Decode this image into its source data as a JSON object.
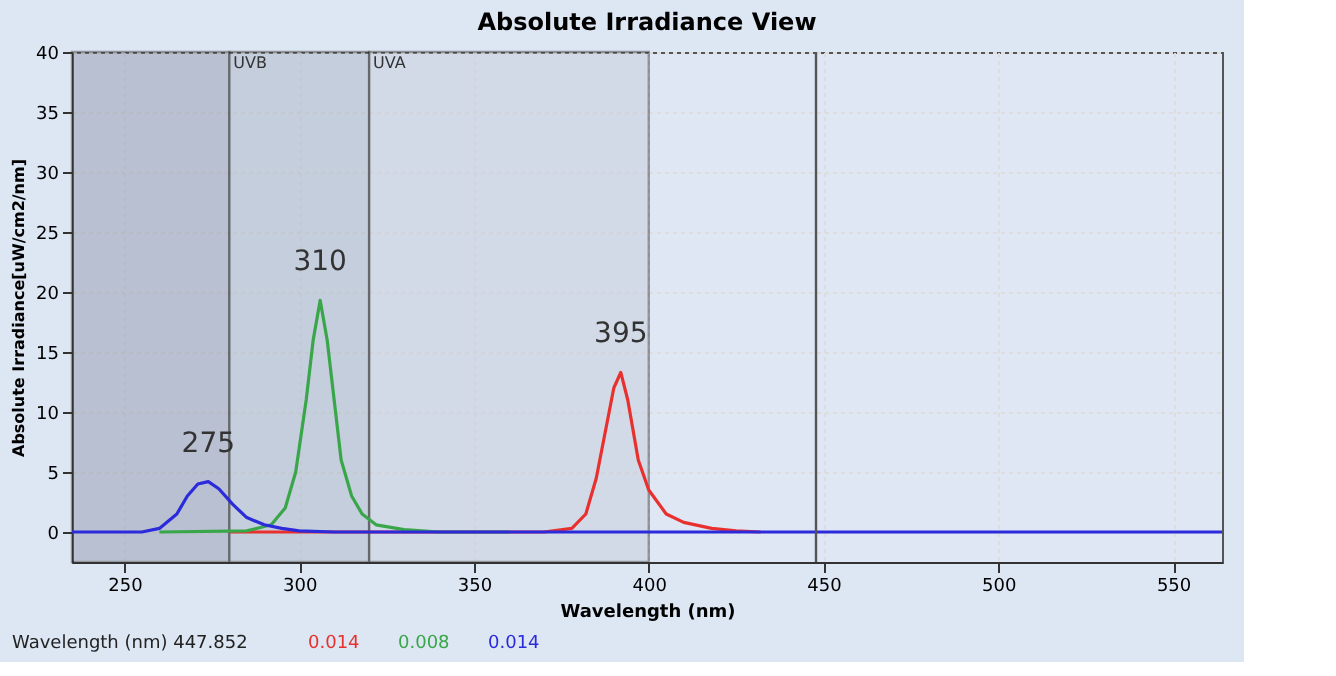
{
  "chart_data": {
    "type": "line",
    "title": "Absolute Irradiance View",
    "xlabel": "Wavelength (nm)",
    "ylabel": "Absolute Irradiance[uW/cm2/nm]",
    "xlim": [
      235,
      564
    ],
    "xticks": [
      250,
      300,
      350,
      400,
      450,
      500,
      550
    ],
    "ylim": [
      -2.5,
      40
    ],
    "yticks": [
      0,
      5,
      10,
      15,
      20,
      25,
      30,
      35,
      40
    ],
    "grid": true,
    "marker": "none",
    "line_style": "solid",
    "series": [
      {
        "color": "#e8312f",
        "x": [
          280,
          370,
          378,
          382,
          385,
          388,
          390,
          392,
          394,
          397,
          400,
          405,
          410,
          418,
          425,
          432
        ],
        "values": [
          0,
          0,
          0.3,
          1.5,
          4.5,
          9,
          12,
          13.3,
          11,
          6,
          3.5,
          1.5,
          0.8,
          0.3,
          0.1,
          0
        ]
      },
      {
        "color": "#3aa64a",
        "x": [
          260,
          285,
          292,
          296,
          299,
          302,
          304,
          306,
          308,
          310,
          312,
          315,
          318,
          322,
          330,
          340,
          360
        ],
        "values": [
          0,
          0.1,
          0.6,
          2,
          5,
          11,
          16,
          19.3,
          16,
          11,
          6,
          3,
          1.5,
          0.6,
          0.2,
          0,
          0
        ]
      },
      {
        "color": "#2b2bdc",
        "x": [
          235,
          255,
          260,
          265,
          268,
          271,
          274,
          277,
          281,
          285,
          290,
          295,
          300,
          310,
          564
        ],
        "values": [
          0,
          0,
          0.3,
          1.5,
          3,
          4,
          4.2,
          3.6,
          2.3,
          1.2,
          0.6,
          0.3,
          0.1,
          0,
          0
        ]
      }
    ],
    "bands": [
      {
        "axis": "x",
        "from": 235,
        "to": 280,
        "label": null,
        "color": "#8a93a8"
      },
      {
        "axis": "x",
        "from": 280,
        "to": 320,
        "label": "UVB",
        "color": "#a7b0c2"
      },
      {
        "axis": "x",
        "from": 320,
        "to": 400,
        "label": "UVA",
        "color": "#c3cad8"
      }
    ],
    "ref_lines": [
      {
        "axis": "x",
        "value": 447.852,
        "label": null,
        "color": "#555555"
      }
    ],
    "annotations": [
      {
        "text": "275",
        "x": 274,
        "y": 4.2
      },
      {
        "text": "310",
        "x": 306,
        "y": 19.3
      },
      {
        "text": "395",
        "x": 392,
        "y": 13.3
      },
      "Wavelength (nm) 447.852",
      "0.014",
      "0.008",
      "0.014"
    ]
  }
}
